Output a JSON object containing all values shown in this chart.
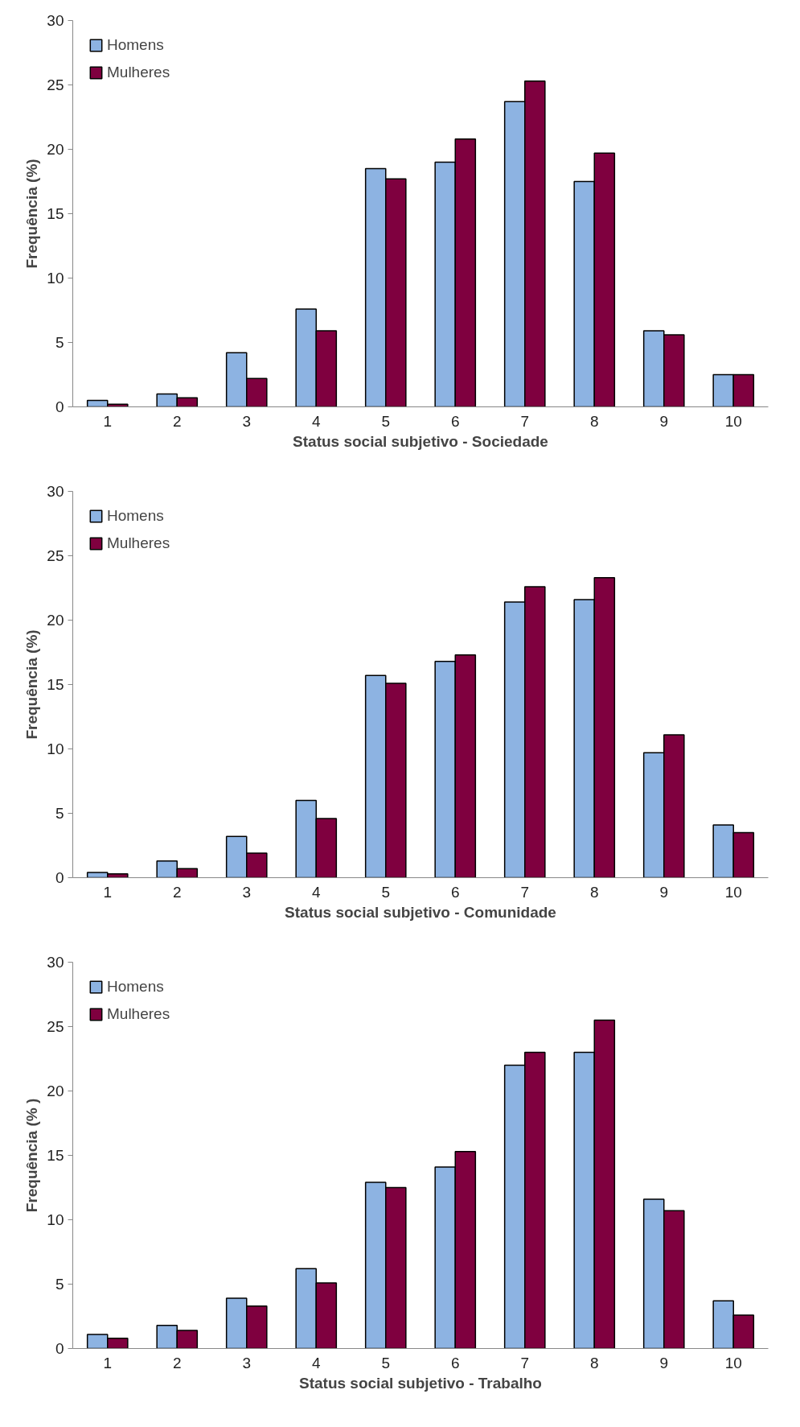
{
  "chart_data": [
    {
      "type": "bar",
      "xlabel": "Status social subjetivo - Sociedade",
      "ylabel": "Frequência (%)",
      "categories": [
        "1",
        "2",
        "3",
        "4",
        "5",
        "6",
        "7",
        "8",
        "9",
        "10"
      ],
      "ylim": [
        0,
        30
      ],
      "yticks": [
        0,
        5,
        10,
        15,
        20,
        25,
        30
      ],
      "legend": "top left",
      "grid": false,
      "series": [
        {
          "name": "Homens",
          "color": "#8db3e2",
          "values": [
            0.5,
            1.0,
            4.2,
            7.6,
            18.5,
            19.0,
            23.7,
            17.5,
            5.9,
            2.5
          ]
        },
        {
          "name": "Mulheres",
          "color": "#7f003f",
          "values": [
            0.2,
            0.7,
            2.2,
            5.9,
            17.7,
            20.8,
            25.3,
            19.7,
            5.6,
            2.5
          ]
        }
      ]
    },
    {
      "type": "bar",
      "xlabel": "Status social subjetivo - Comunidade",
      "ylabel": "Frequência (%)",
      "categories": [
        "1",
        "2",
        "3",
        "4",
        "5",
        "6",
        "7",
        "8",
        "9",
        "10"
      ],
      "ylim": [
        0,
        30
      ],
      "yticks": [
        0,
        5,
        10,
        15,
        20,
        25,
        30
      ],
      "legend": "top left",
      "grid": false,
      "series": [
        {
          "name": "Homens",
          "color": "#8db3e2",
          "values": [
            0.4,
            1.3,
            3.2,
            6.0,
            15.7,
            16.8,
            21.4,
            21.6,
            9.7,
            4.1
          ]
        },
        {
          "name": "Mulheres",
          "color": "#7f003f",
          "values": [
            0.3,
            0.7,
            1.9,
            4.6,
            15.1,
            17.3,
            22.6,
            23.3,
            11.1,
            3.5
          ]
        }
      ]
    },
    {
      "type": "bar",
      "xlabel": "Status social subjetivo - Trabalho",
      "ylabel": "Frequência (% )",
      "categories": [
        "1",
        "2",
        "3",
        "4",
        "5",
        "6",
        "7",
        "8",
        "9",
        "10"
      ],
      "ylim": [
        0,
        30
      ],
      "yticks": [
        0,
        5,
        10,
        15,
        20,
        25,
        30
      ],
      "legend": "top left",
      "grid": false,
      "series": [
        {
          "name": "Homens",
          "color": "#8db3e2",
          "values": [
            1.1,
            1.8,
            3.9,
            6.2,
            12.9,
            14.1,
            22.0,
            23.0,
            11.6,
            3.7
          ]
        },
        {
          "name": "Mulheres",
          "color": "#7f003f",
          "values": [
            0.8,
            1.4,
            3.3,
            5.1,
            12.5,
            15.3,
            23.0,
            25.5,
            10.7,
            2.6
          ]
        }
      ]
    }
  ]
}
